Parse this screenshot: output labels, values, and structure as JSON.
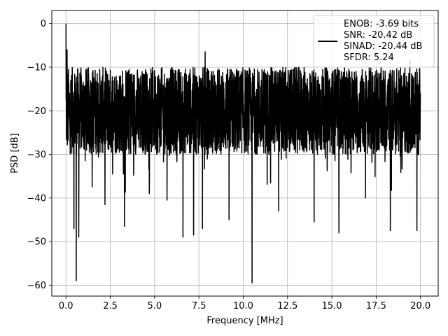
{
  "chart_data": {
    "type": "line",
    "title": "",
    "xlabel": "Frequency [MHz]",
    "ylabel": "PSD [dB]",
    "xlim": [
      -0.8,
      21.0
    ],
    "ylim": [
      -62.5,
      3.0
    ],
    "xticks": [
      0.0,
      2.5,
      5.0,
      7.5,
      10.0,
      12.5,
      15.0,
      17.5,
      20.0
    ],
    "xtick_labels": [
      "0.0",
      "2.5",
      "5.0",
      "7.5",
      "10.0",
      "12.5",
      "15.0",
      "17.5",
      "20.0"
    ],
    "yticks": [
      0,
      -10,
      -20,
      -30,
      -40,
      -50,
      -60
    ],
    "ytick_labels": [
      "0",
      "−10",
      "−20",
      "−30",
      "−40",
      "−50",
      "−60"
    ],
    "grid": true,
    "legend_position": "top-right",
    "line_color": "#000000",
    "series": [
      {
        "name": "ENOB: -3.69 bits",
        "legend_lines": [
          "ENOB: -3.69 bits",
          "SNR: -20.42 dB",
          "SINAD: -20.44 dB",
          "SFDR: 5.24"
        ],
        "x_range": [
          0.0,
          20.0
        ],
        "noise_floor_band": [
          -30,
          -10
        ],
        "peaks": [
          {
            "x": 0.0,
            "y": 0.0
          },
          {
            "x": 0.06,
            "y": -6.0
          },
          {
            "x": 7.85,
            "y": -6.5
          },
          {
            "x": 19.4,
            "y": -8.5
          }
        ],
        "dips": [
          {
            "x": 0.45,
            "y": -47.0
          },
          {
            "x": 0.58,
            "y": -59.0
          },
          {
            "x": 0.72,
            "y": -49.0
          },
          {
            "x": 2.2,
            "y": -41.5
          },
          {
            "x": 3.3,
            "y": -46.5
          },
          {
            "x": 4.7,
            "y": -39.0
          },
          {
            "x": 5.7,
            "y": -40.5
          },
          {
            "x": 6.6,
            "y": -49.0
          },
          {
            "x": 7.2,
            "y": -48.5
          },
          {
            "x": 7.7,
            "y": -47.0
          },
          {
            "x": 9.2,
            "y": -45.0
          },
          {
            "x": 10.5,
            "y": -59.5
          },
          {
            "x": 12.0,
            "y": -43.0
          },
          {
            "x": 14.0,
            "y": -45.5
          },
          {
            "x": 15.4,
            "y": -48.0
          },
          {
            "x": 16.9,
            "y": -40.0
          },
          {
            "x": 18.3,
            "y": -47.5
          },
          {
            "x": 19.8,
            "y": -47.5
          }
        ]
      }
    ]
  }
}
